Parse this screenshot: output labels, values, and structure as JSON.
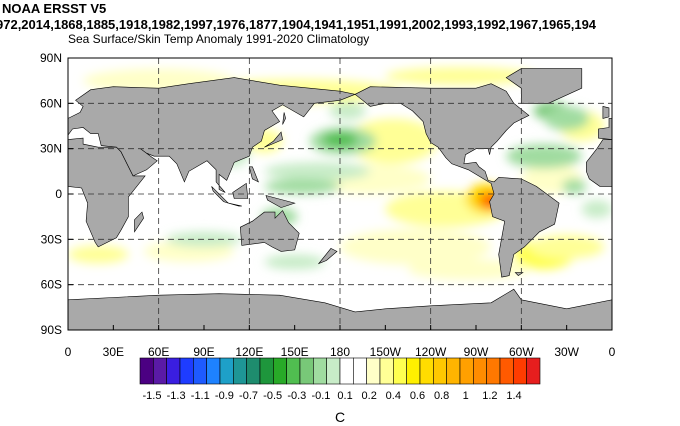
{
  "title": "NOAA ERSST V5",
  "years": "972,2014,1868,1885,1918,1982,1997,1976,1877,1904,1941,1951,1991,2002,1993,1992,1967,1965,194",
  "subtitle": "Sea Surface/Skin Temp Anomaly  1991-2020 Climatology",
  "lat_labels": [
    "90N",
    "60N",
    "30N",
    "0",
    "30S",
    "60S",
    "90S"
  ],
  "lon_labels": [
    "0",
    "30E",
    "60E",
    "90E",
    "120E",
    "150E",
    "180",
    "150W",
    "120W",
    "90W",
    "60W",
    "30W",
    "0"
  ],
  "colorbar": {
    "colors": [
      "#4b0082",
      "#5a1aa6",
      "#3a1ee0",
      "#1e3cff",
      "#1e5aff",
      "#1e82ff",
      "#1ea0c8",
      "#1e9696",
      "#1e8c6e",
      "#1e963c",
      "#28aa28",
      "#50be50",
      "#78c878",
      "#a0dca0",
      "#c8ecc8",
      "#ffffff",
      "#ffffff",
      "#ffffc8",
      "#ffff96",
      "#ffff50",
      "#fff000",
      "#ffdc00",
      "#ffc800",
      "#ffb400",
      "#ffa000",
      "#ff8c00",
      "#ff7800",
      "#ff5a00",
      "#ff3c00",
      "#e61e1e"
    ],
    "labels": [
      "-1.5",
      "-1.3",
      "-1.1",
      "-0.9",
      "-0.7",
      "-0.5",
      "-0.3",
      "-0.1",
      "0.1",
      "0.2",
      "0.4",
      "0.6",
      "0.8",
      "1",
      "1.2",
      "1.4"
    ],
    "unit": "C"
  }
}
